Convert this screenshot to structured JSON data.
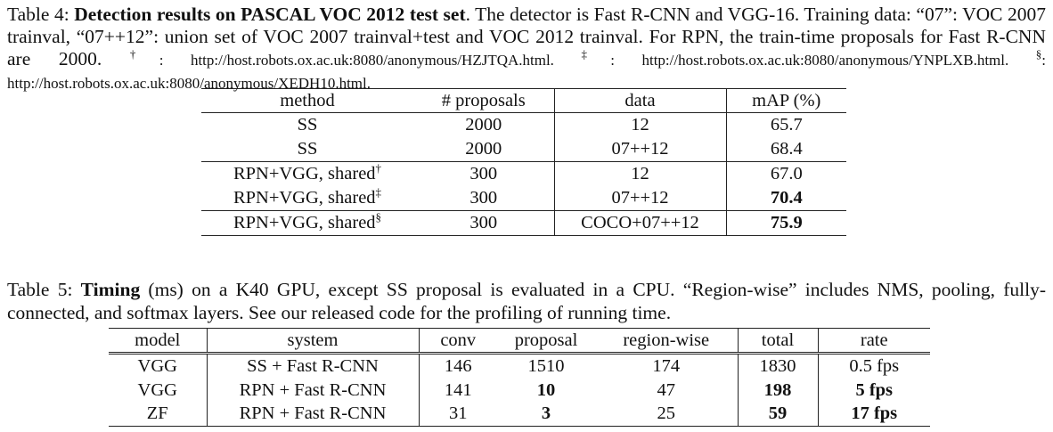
{
  "table4": {
    "caption": {
      "label": "Table 4: ",
      "bold": "Detection results on PASCAL VOC 2012 test set",
      "rest": ". The detector is Fast R-CNN and VGG-16. Training data: “07”: VOC 2007 trainval, “07++12”: union set of VOC 2007 trainval+test and VOC 2012 trainval. For RPN, the train-time proposals for Fast R-CNN are 2000. ",
      "mark1": "†",
      "url1": ": http://host.robots.ox.ac.uk:8080/anonymous/HZJTQA.html. ",
      "mark2": "‡",
      "url2": ": http://host.robots.ox.ac.uk:8080/anonymous/YNPLXB.html. ",
      "mark3": "§",
      "url3": ": http://host.robots.ox.ac.uk:8080/anonymous/XEDH10.html."
    },
    "headers": [
      "method",
      "# proposals",
      "data",
      "mAP (%)"
    ],
    "rows": [
      {
        "method": "SS",
        "mark": "",
        "proposals": "2000",
        "data": "12",
        "map": "65.7",
        "bold": false
      },
      {
        "method": "SS",
        "mark": "",
        "proposals": "2000",
        "data": "07++12",
        "map": "68.4",
        "bold": false
      },
      {
        "method": "RPN+VGG, shared",
        "mark": "†",
        "proposals": "300",
        "data": "12",
        "map": "67.0",
        "bold": false
      },
      {
        "method": "RPN+VGG, shared",
        "mark": "‡",
        "proposals": "300",
        "data": "07++12",
        "map": "70.4",
        "bold": true
      },
      {
        "method": "RPN+VGG, shared",
        "mark": "§",
        "proposals": "300",
        "data": "COCO+07++12",
        "map": "75.9",
        "bold": true
      }
    ]
  },
  "table5": {
    "caption": {
      "label": "Table 5: ",
      "bold": "Timing",
      "rest": " (ms) on a K40 GPU, except SS proposal is evaluated in a CPU. “Region-wise” includes NMS, pooling, fully-connected, and softmax layers. See our released code for the profiling of running time."
    },
    "headers": [
      "model",
      "system",
      "conv",
      "proposal",
      "region-wise",
      "total",
      "rate"
    ],
    "rows": [
      {
        "model": "VGG",
        "system": "SS + Fast R-CNN",
        "conv": "146",
        "proposal": "1510",
        "region": "174",
        "total": "1830",
        "rate": "0.5 fps",
        "bold_proposal": false,
        "bold_total": false,
        "bold_rate": false
      },
      {
        "model": "VGG",
        "system": "RPN + Fast R-CNN",
        "conv": "141",
        "proposal": "10",
        "region": "47",
        "total": "198",
        "rate": "5 fps",
        "bold_proposal": true,
        "bold_total": true,
        "bold_rate": true
      },
      {
        "model": "ZF",
        "system": "RPN + Fast R-CNN",
        "conv": "31",
        "proposal": "3",
        "region": "25",
        "total": "59",
        "rate": "17 fps",
        "bold_proposal": true,
        "bold_total": true,
        "bold_rate": true
      }
    ]
  }
}
